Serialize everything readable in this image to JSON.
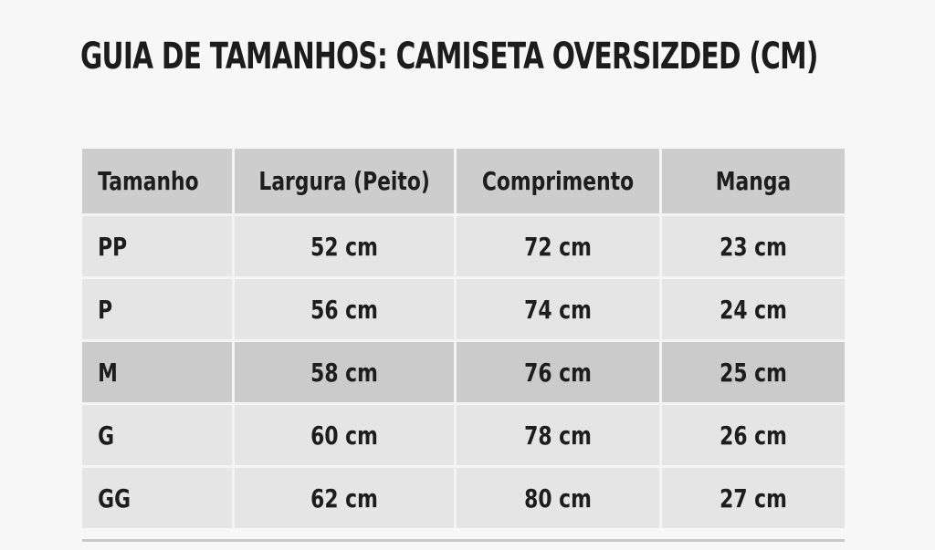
{
  "title": "GUIA DE TAMANHOS: CAMISETA OVERSIZDED (CM)",
  "table": {
    "headers": [
      "Tamanho",
      "Largura (Peito)",
      "Comprimento",
      "Manga"
    ],
    "rows": [
      {
        "size": "PP",
        "width": "52 cm",
        "length": "72 cm",
        "sleeve": "23 cm"
      },
      {
        "size": "P",
        "width": "56 cm",
        "length": "74 cm",
        "sleeve": "24 cm"
      },
      {
        "size": "M",
        "width": "58 cm",
        "length": "76 cm",
        "sleeve": "25 cm"
      },
      {
        "size": "G",
        "width": "60 cm",
        "length": "78 cm",
        "sleeve": "26 cm"
      },
      {
        "size": "GG",
        "width": "62 cm",
        "length": "80 cm",
        "sleeve": "27 cm"
      }
    ]
  },
  "colors": {
    "background": "#f7f7f7",
    "header_fill": "#cdcdcd",
    "row_fill": "#e5e5e5",
    "highlight_row_fill": "#cbcbcb",
    "text": "#1d1d1d"
  }
}
